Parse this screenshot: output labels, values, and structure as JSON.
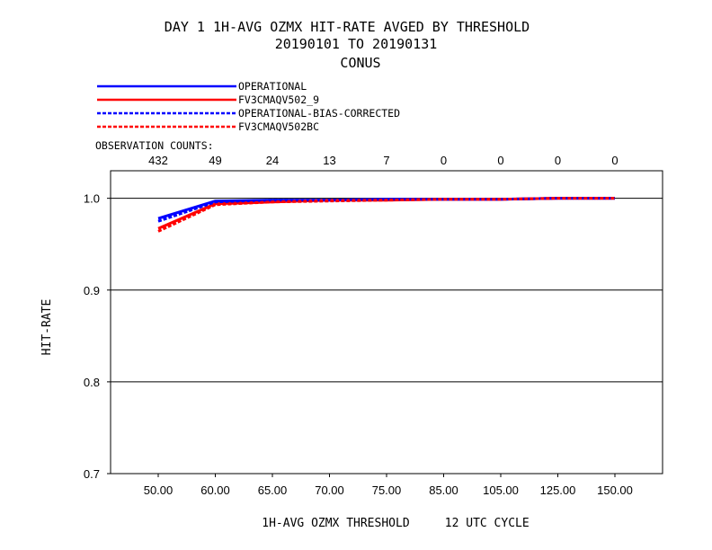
{
  "title_lines": [
    "DAY 1   1H-AVG OZMX HIT-RATE   AVGED BY THRESHOLD",
    "20190101 TO 20190131",
    "CONUS"
  ],
  "observation_counts_label": "OBSERVATION COUNTS:",
  "observation_counts": [
    "432",
    "49",
    "24",
    "13",
    "7",
    "0",
    "0",
    "0",
    "0"
  ],
  "chart_data": {
    "type": "line",
    "categories": [
      "50.00",
      "60.00",
      "65.00",
      "70.00",
      "75.00",
      "85.00",
      "105.00",
      "125.00",
      "150.00"
    ],
    "xlabel": "1H-AVG OZMX THRESHOLD     12 UTC CYCLE",
    "ylabel": "HIT-RATE",
    "ylim": [
      0.7,
      1.03
    ],
    "yticks": [
      "0.7",
      "0.8",
      "0.9",
      "1.0"
    ],
    "grid": "horizontal at 0.8, 0.9, 1.0",
    "legend_position": "top-left above plot",
    "series": [
      {
        "name": "OPERATIONAL",
        "color": "#0000ff",
        "style": "solid",
        "values": [
          0.978,
          0.997,
          0.998,
          0.998,
          0.999,
          0.999,
          0.999,
          1.0,
          1.0
        ]
      },
      {
        "name": "FV3CMAQV502_9",
        "color": "#ff0000",
        "style": "solid",
        "values": [
          0.967,
          0.994,
          0.996,
          0.998,
          0.998,
          0.999,
          0.999,
          1.0,
          1.0
        ]
      },
      {
        "name": "OPERATIONAL-BIAS-CORRECTED",
        "color": "#0000ff",
        "style": "dashed",
        "values": [
          0.975,
          0.996,
          0.998,
          0.998,
          0.999,
          0.999,
          0.999,
          1.0,
          1.0
        ]
      },
      {
        "name": "FV3CMAQV502BC",
        "color": "#ff0000",
        "style": "dashed",
        "values": [
          0.964,
          0.993,
          0.996,
          0.997,
          0.998,
          0.999,
          0.999,
          1.0,
          1.0
        ]
      }
    ]
  }
}
